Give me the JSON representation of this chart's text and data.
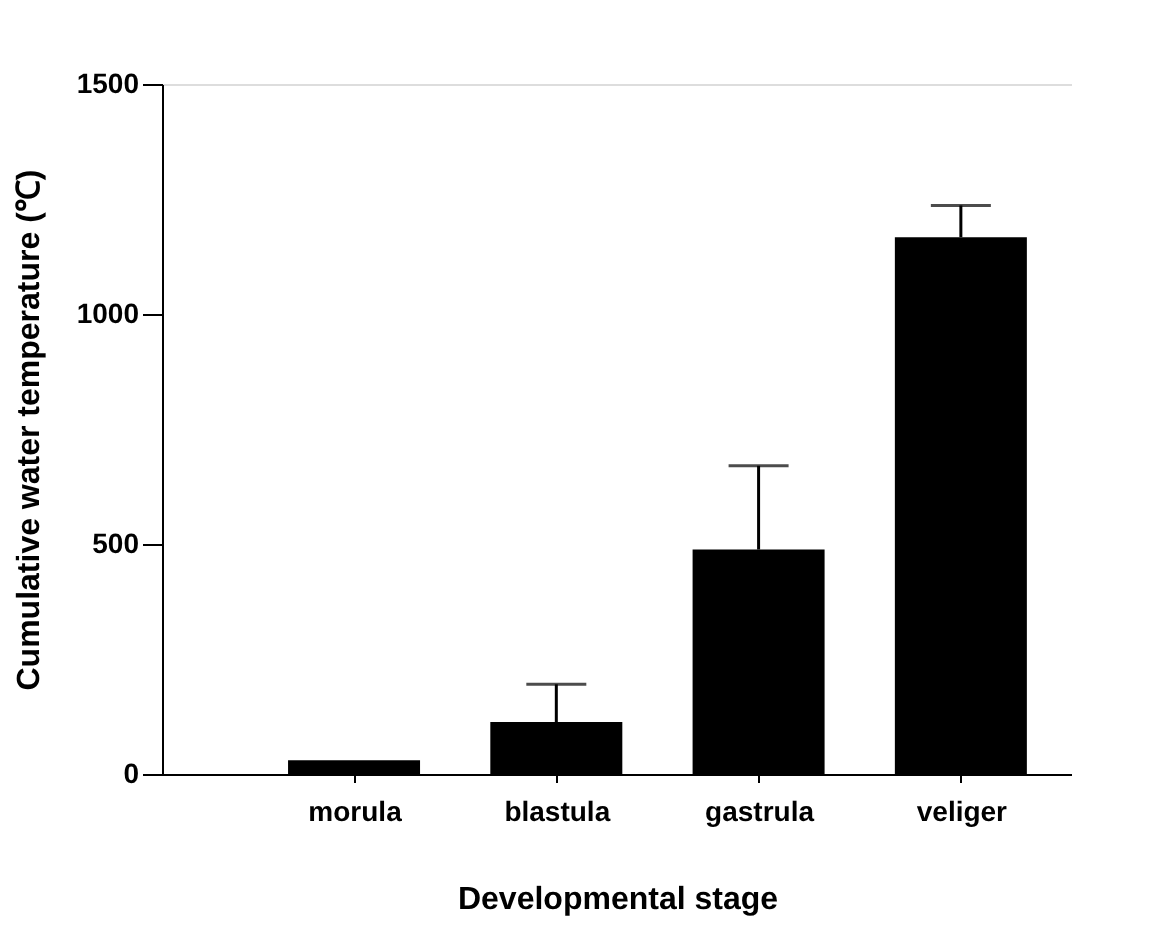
{
  "chart_data": {
    "type": "bar",
    "xlabel": "Developmental stage",
    "ylabel": "Cumulative water temperature (℃)",
    "categories": [
      "morula",
      "blastula",
      "gastrula",
      "veliger"
    ],
    "values": [
      30,
      113,
      488,
      1167
    ],
    "errors": [
      null,
      [
        113,
        195
      ],
      [
        488,
        670
      ],
      [
        1167,
        1236
      ]
    ],
    "color": "#000000",
    "ylim": [
      0,
      1500
    ],
    "yticks": [
      0,
      500,
      1000,
      1500
    ],
    "grid": false
  }
}
